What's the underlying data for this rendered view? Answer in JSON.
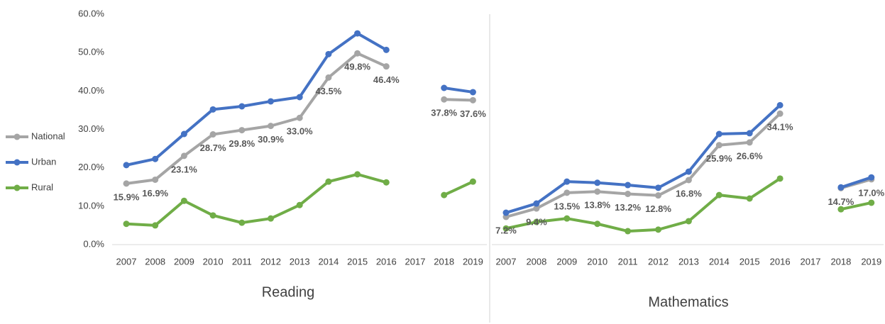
{
  "chart_data": [
    {
      "type": "line",
      "xlabel": "Reading",
      "categories": [
        "2007",
        "2008",
        "2009",
        "2010",
        "2011",
        "2012",
        "2013",
        "2014",
        "2015",
        "2016",
        "2017",
        "2018",
        "2019"
      ],
      "ylim": [
        0,
        60
      ],
      "yticks": [
        {
          "value": 0,
          "label": "0.0%"
        },
        {
          "value": 10,
          "label": "10.0%"
        },
        {
          "value": 20,
          "label": "20.0%"
        },
        {
          "value": 30,
          "label": "30.0%"
        },
        {
          "value": 40,
          "label": "40.0%"
        },
        {
          "value": 50,
          "label": "50.0%"
        },
        {
          "value": 60,
          "label": "60.0%"
        }
      ],
      "series": [
        {
          "name": "National",
          "color": "#a5a5a5",
          "values": [
            15.9,
            16.9,
            23.1,
            28.7,
            29.8,
            30.9,
            33.0,
            43.5,
            49.8,
            46.4,
            null,
            37.8,
            37.6
          ],
          "value_labels": [
            "15.9%",
            "16.9%",
            "23.1%",
            "28.7%",
            "29.8%",
            "30.9%",
            "33.0%",
            "43.5%",
            "49.8%",
            "46.4%",
            null,
            "37.8%",
            "37.6%"
          ]
        },
        {
          "name": "Urban",
          "color": "#4472c4",
          "values": [
            20.7,
            22.3,
            28.8,
            35.2,
            36.0,
            37.3,
            38.4,
            49.6,
            55.0,
            50.7,
            null,
            40.8,
            39.7
          ]
        },
        {
          "name": "Rural",
          "color": "#70ad47",
          "values": [
            5.4,
            5.0,
            11.4,
            7.6,
            5.7,
            6.8,
            10.3,
            16.4,
            18.3,
            16.2,
            null,
            12.9,
            16.4
          ]
        }
      ]
    },
    {
      "type": "line",
      "xlabel": "Mathematics",
      "categories": [
        "2007",
        "2008",
        "2009",
        "2010",
        "2011",
        "2012",
        "2013",
        "2014",
        "2015",
        "2016",
        "2017",
        "2018",
        "2019"
      ],
      "ylim": [
        0,
        60
      ],
      "series": [
        {
          "color": "#a5a5a5",
          "values": [
            7.2,
            9.4,
            13.5,
            13.8,
            13.2,
            12.8,
            16.8,
            25.9,
            26.6,
            34.1,
            null,
            14.7,
            17.0
          ],
          "value_labels": [
            "7.2%",
            "9.4%",
            "13.5%",
            "13.8%",
            "13.2%",
            "12.8%",
            "16.8%",
            "25.9%",
            "26.6%",
            "34.1%",
            null,
            "14.7%",
            "17.0%"
          ]
        },
        {
          "color": "#4472c4",
          "values": [
            8.3,
            10.7,
            16.4,
            16.1,
            15.5,
            14.8,
            19.0,
            28.8,
            29.0,
            36.3,
            null,
            14.9,
            17.5
          ]
        },
        {
          "color": "#70ad47",
          "values": [
            4.2,
            5.9,
            6.8,
            5.4,
            3.5,
            3.9,
            6.1,
            12.9,
            12.0,
            17.2,
            null,
            9.2,
            10.9
          ]
        }
      ]
    }
  ]
}
